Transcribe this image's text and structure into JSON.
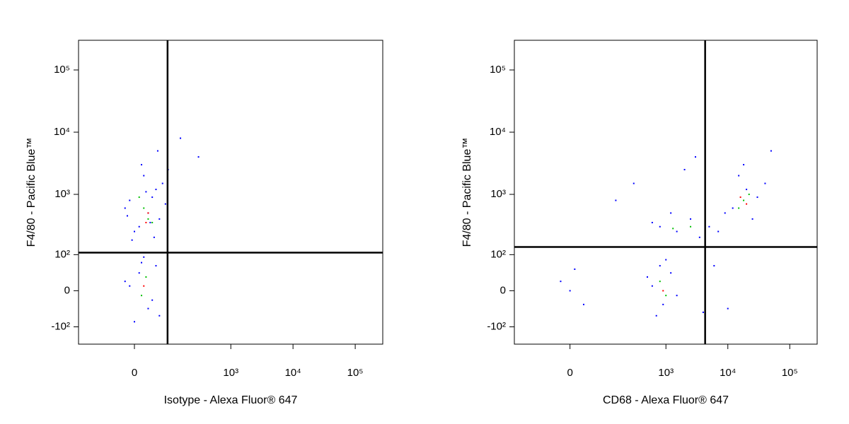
{
  "chart_data": [
    {
      "type": "scatter",
      "scale": "biexponential",
      "x_label": "Isotype - Alexa Fluor® 647",
      "y_label": "F4/80 - Pacific Blue™",
      "xlim": [
        -220,
        277000
      ],
      "ylim": [
        -200,
        300000
      ],
      "xticks": [
        0,
        {
          "value": 1000,
          "label": "10³"
        },
        {
          "value": 10000,
          "label": "10⁴"
        },
        {
          "value": 100000,
          "label": "10⁵"
        }
      ],
      "yticks": [
        {
          "value": -100,
          "label": "-10²"
        },
        0,
        {
          "value": 100,
          "label": "10²"
        },
        {
          "value": 1000,
          "label": "10³"
        },
        {
          "value": 10000,
          "label": "10⁴"
        },
        {
          "value": 100000,
          "label": "10⁵"
        }
      ],
      "gates": {
        "x": 88,
        "y": 109
      },
      "series": [
        {
          "color": "#0000ff",
          "x": [
            10,
            30,
            -10,
            50,
            20,
            60,
            0,
            40,
            -20,
            70,
            15,
            80,
            -5,
            35,
            55,
            25,
            -15,
            45,
            90,
            150,
            300,
            10,
            30,
            -10,
            50,
            0,
            40,
            20,
            -20,
            60,
            15
          ],
          "y": [
            300,
            500,
            800,
            1200,
            2000,
            400,
            250,
            900,
            600,
            1500,
            3000,
            700,
            180,
            350,
            5000,
            1100,
            450,
            200,
            2500,
            8000,
            4000,
            40,
            -40,
            10,
            60,
            -80,
            -20,
            90,
            20,
            -60,
            70
          ]
        },
        {
          "color": "#00c000",
          "x": [
            20,
            30,
            10,
            40,
            25,
            15
          ],
          "y": [
            600,
            400,
            900,
            350,
            30,
            -10
          ]
        },
        {
          "color": "#ff0000",
          "x": [
            25,
            20,
            30
          ],
          "y": [
            350,
            10,
            500
          ]
        }
      ]
    },
    {
      "type": "scatter",
      "scale": "biexponential",
      "x_label": "CD68 - Alexa Fluor® 647",
      "y_label": "F4/80 - Pacific Blue™",
      "xlim": [
        -220,
        277000
      ],
      "ylim": [
        -200,
        300000
      ],
      "xticks": [
        0,
        {
          "value": 1000,
          "label": "10³"
        },
        {
          "value": 10000,
          "label": "10⁴"
        },
        {
          "value": 100000,
          "label": "10⁵"
        }
      ],
      "yticks": [
        {
          "value": -100,
          "label": "-10²"
        },
        0,
        {
          "value": 100,
          "label": "10²"
        },
        {
          "value": 1000,
          "label": "10³"
        },
        {
          "value": 10000,
          "label": "10⁴"
        },
        {
          "value": 100000,
          "label": "10⁵"
        }
      ],
      "gates": {
        "x": 4300,
        "y": 137
      },
      "series": [
        {
          "color": "#0000ff",
          "x": [
            -20,
            10,
            30,
            0,
            600,
            900,
            1200,
            700,
            1000,
            500,
            1500,
            800,
            800,
            1500,
            2500,
            3500,
            1200,
            600,
            5000,
            7000,
            12000,
            20000,
            30000,
            15000,
            9000,
            25000,
            40000,
            18000,
            50000,
            300,
            2000,
            150,
            4000,
            6000,
            10000,
            3000
          ],
          "y": [
            20,
            50,
            -30,
            0,
            10,
            -30,
            40,
            -60,
            80,
            30,
            -10,
            60,
            300,
            250,
            400,
            200,
            500,
            350,
            300,
            250,
            600,
            1200,
            900,
            2000,
            500,
            400,
            1500,
            3000,
            5000,
            1500,
            2500,
            800,
            -50,
            60,
            -40,
            4000
          ]
        },
        {
          "color": "#00c000",
          "x": [
            800,
            1000,
            1300,
            2500,
            18000,
            22000,
            15000
          ],
          "y": [
            20,
            -10,
            280,
            300,
            800,
            1000,
            600
          ]
        },
        {
          "color": "#ff0000",
          "x": [
            900,
            20000,
            16000
          ],
          "y": [
            0,
            700,
            900
          ]
        }
      ]
    }
  ]
}
